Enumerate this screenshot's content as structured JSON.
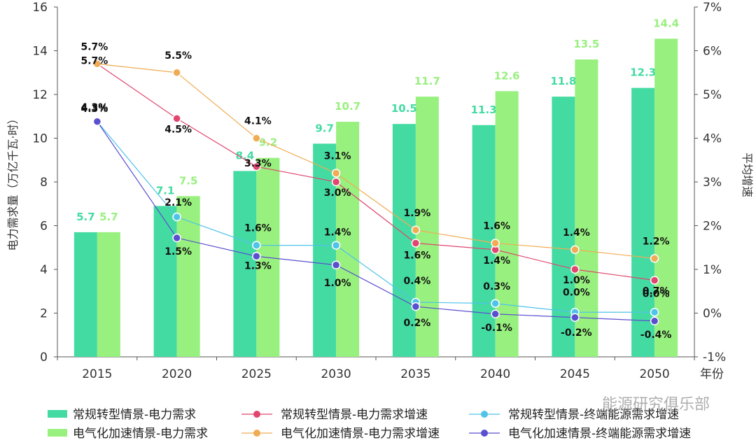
{
  "chart_data": {
    "type": "bar",
    "x_unit_label": "年份",
    "categories": [
      "2015",
      "2020",
      "2025",
      "2030",
      "2035",
      "2040",
      "2045",
      "2050"
    ],
    "ylabel_left": "电力需求量（万亿千瓦·时）",
    "ylabel_right": "平均增速",
    "ylim_left": [
      0,
      16
    ],
    "yticks_left": [
      "0",
      "2",
      "4",
      "6",
      "8",
      "10",
      "12",
      "14",
      "16"
    ],
    "ylim_right": [
      -1,
      7
    ],
    "yticks_right": [
      "-1%",
      "0%",
      "1%",
      "2%",
      "3%",
      "4%",
      "5%",
      "6%",
      "7%"
    ],
    "grid": false,
    "legend_position": "bottom",
    "bar_series": [
      {
        "name": "常规转型情景-电力需求",
        "color": "#44dba2",
        "values": [
          5.7,
          7.1,
          8.4,
          9.7,
          10.5,
          11.3,
          11.8,
          12.3
        ],
        "labels": [
          "5.7",
          "7.1",
          "8.4",
          "9.7",
          "10.5",
          "11.3",
          "11.8",
          "12.3"
        ],
        "values_as_drawn": [
          5.7,
          6.9,
          8.5,
          9.75,
          10.65,
          10.6,
          11.9,
          12.3
        ]
      },
      {
        "name": "电气化加速情景-电力需求",
        "color": "#98f07f",
        "values": [
          5.7,
          7.5,
          9.2,
          10.7,
          11.7,
          12.6,
          13.5,
          14.4
        ],
        "labels": [
          "5.7",
          "7.5",
          "9.2",
          "10.7",
          "11.7",
          "12.6",
          "13.5",
          "14.4"
        ],
        "values_as_drawn": [
          5.7,
          7.35,
          9.1,
          10.75,
          11.9,
          12.15,
          13.6,
          14.55
        ]
      }
    ],
    "line_series": [
      {
        "name": "常规转型情景-电力需求增速",
        "color": "#e0466e",
        "values": [
          5.7,
          4.5,
          3.3,
          3.0,
          1.6,
          1.4,
          1.0,
          0.7
        ],
        "labels": [
          "5.7%",
          "4.5%",
          "3.3%",
          "3.0%",
          "1.6%",
          "1.4%",
          "1.0%",
          "0.7%"
        ],
        "values_as_drawn": [
          5.7,
          4.45,
          3.35,
          3.0,
          1.6,
          1.45,
          1.0,
          0.75
        ]
      },
      {
        "name": "电气化加速情景-电力需求增速",
        "color": "#f0ac55",
        "values": [
          5.7,
          5.5,
          4.1,
          3.1,
          1.9,
          1.6,
          1.4,
          1.2
        ],
        "labels": [
          "5.7%",
          "5.5%",
          "4.1%",
          "3.1%",
          "1.9%",
          "1.6%",
          "1.4%",
          "1.2%"
        ],
        "values_as_drawn": [
          5.7,
          5.5,
          4.0,
          3.2,
          1.9,
          1.6,
          1.45,
          1.25
        ]
      },
      {
        "name": "常规转型情景-终端能源需求增速",
        "color": "#4fc3e8",
        "values": [
          null,
          2.1,
          1.6,
          1.4,
          0.4,
          0.3,
          0.0,
          0.0
        ],
        "labels": [
          "",
          "2.1%",
          "1.6%",
          "1.4%",
          "0.4%",
          "0.3%",
          "0.0%",
          "0.0%"
        ],
        "values_as_drawn": [
          4.38,
          2.2,
          1.55,
          1.55,
          0.25,
          0.22,
          0.02,
          0.02
        ]
      },
      {
        "name": "电气化加速情景-终端能源需求增速",
        "color": "#5a4fcf",
        "values": [
          4.3,
          1.5,
          1.3,
          1.0,
          0.2,
          -0.1,
          -0.2,
          -0.4
        ],
        "labels": [
          "4.3%",
          "1.5%",
          "1.3%",
          "1.0%",
          "0.2%",
          "-0.1%",
          "-0.2%",
          "-0.4%"
        ],
        "values_as_drawn": [
          4.38,
          1.72,
          1.3,
          1.1,
          0.15,
          -0.02,
          -0.1,
          -0.18
        ]
      }
    ],
    "extra_labels": [
      {
        "category": "2015",
        "text": "4.3%"
      }
    ]
  },
  "watermark": "能源研究俱乐部"
}
